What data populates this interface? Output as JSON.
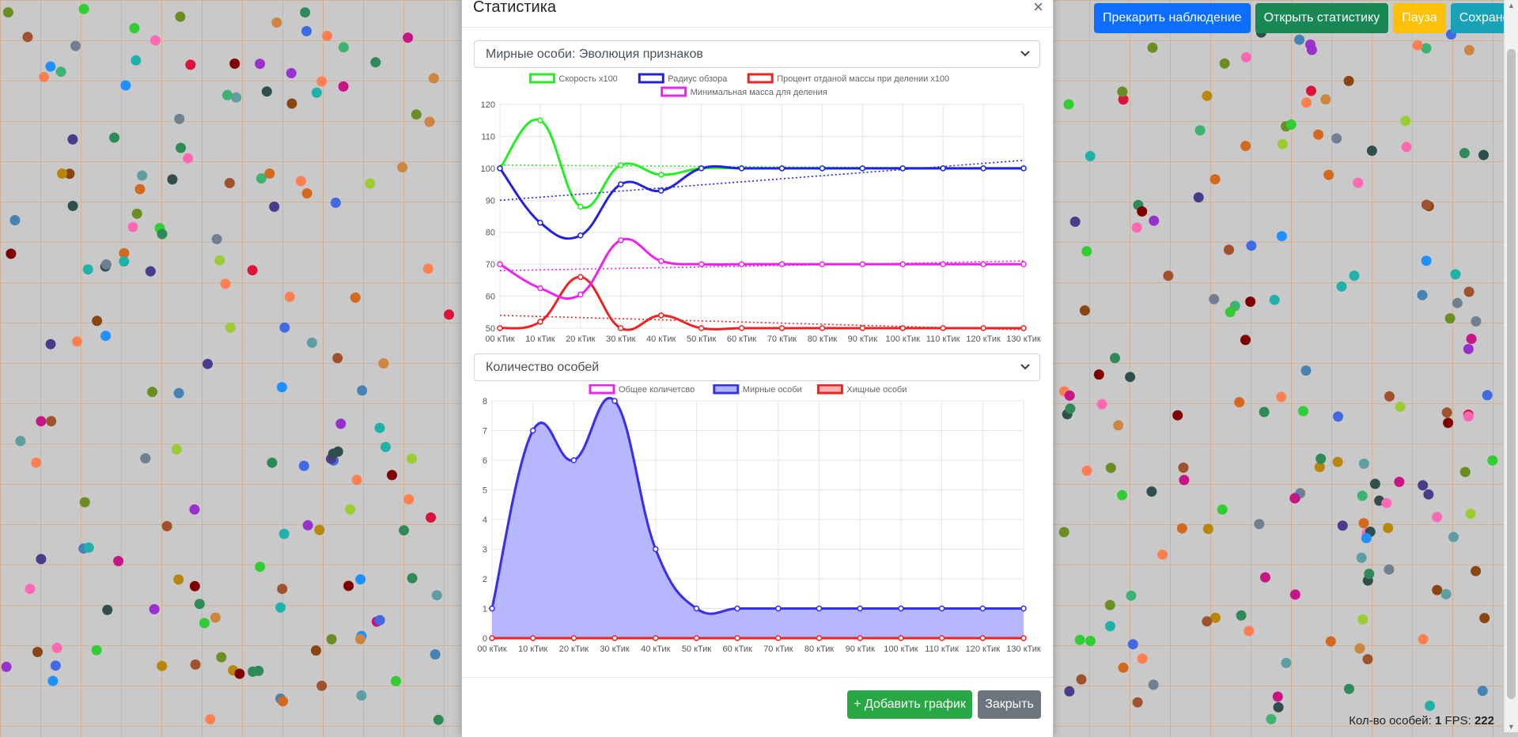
{
  "toolbar": {
    "stop_label": "Прекарить наблюдение",
    "open_stats_label": "Открыть статистику",
    "pause_label": "Пауза",
    "save_label": "Сохранения"
  },
  "status": {
    "count_label": "Кол-во особей:",
    "count_value": "1",
    "fps_label": "FPS:",
    "fps_value": "222"
  },
  "modal": {
    "title": "Статистика",
    "close_symbol": "×",
    "add_chart_label": "+ Добавить график",
    "close_label": "Закрыть"
  },
  "colors": {
    "primary": "#0d6efd",
    "success": "#198754",
    "warning": "#ffc107",
    "info": "#17a2b8",
    "secondary": "#6c757d",
    "speed": "#22ee22",
    "radius": "#2222dd",
    "percent": "#ee2222",
    "mass": "#ee22ee"
  },
  "chart_data": [
    {
      "type": "line",
      "select_label": "Мирные особи: Эволюция признаков",
      "categories": [
        "00 кТик",
        "10 кТик",
        "20 кТик",
        "30 кТик",
        "40 кТик",
        "50 кТик",
        "60 кТик",
        "70 кТик",
        "80 кТик",
        "90 кТик",
        "100 кТик",
        "110 кТик",
        "120 кТик",
        "130 кТик"
      ],
      "ylim": [
        50,
        120
      ],
      "yticks": [
        50,
        60,
        70,
        80,
        90,
        100,
        110,
        120
      ],
      "series": [
        {
          "name": "Скорость х100",
          "color": "#22ee22",
          "values": [
            100,
            115,
            88,
            101,
            98,
            100,
            100,
            100,
            100,
            100,
            100,
            100,
            100,
            100
          ],
          "trend": [
            101,
            100
          ]
        },
        {
          "name": "Радиус обзора",
          "color": "#2222dd",
          "values": [
            100,
            83,
            79,
            95,
            93,
            100,
            100,
            100,
            100,
            100,
            100,
            100,
            100,
            100
          ],
          "trend": [
            90,
            102.5
          ]
        },
        {
          "name": "Процент отданой массы при делении х100",
          "color": "#ee2222",
          "values": [
            50,
            52,
            66,
            50,
            54,
            50,
            50,
            50,
            50,
            50,
            50,
            50,
            50,
            50
          ],
          "trend": [
            54,
            49.5
          ]
        },
        {
          "name": "Минимальная масса для деления",
          "color": "#ee22ee",
          "values": [
            70,
            62.5,
            60.5,
            77.5,
            71,
            70,
            70,
            70,
            70,
            70,
            70,
            70,
            70,
            70
          ],
          "trend": [
            68,
            71
          ]
        }
      ]
    },
    {
      "type": "area",
      "select_label": "Количество особей",
      "categories": [
        "00 кТик",
        "10 кТик",
        "20 кТик",
        "30 кТик",
        "40 кТик",
        "50 кТик",
        "60 кТик",
        "70 кТик",
        "80 кТик",
        "90 кТик",
        "100 кТик",
        "110 кТик",
        "120 кТик",
        "130 кТик"
      ],
      "ylim": [
        0,
        8
      ],
      "yticks": [
        0,
        1,
        2,
        3,
        4,
        5,
        6,
        7,
        8
      ],
      "series": [
        {
          "name": "Общее количетсво",
          "color": "#ee22ee",
          "fill": "none",
          "values": [
            1,
            7,
            6,
            8,
            3,
            1,
            1,
            1,
            1,
            1,
            1,
            1,
            1,
            1
          ]
        },
        {
          "name": "Мирные особи",
          "color": "#3333ee",
          "fill": "#b3b3ff",
          "values": [
            1,
            7,
            6,
            8,
            3,
            1,
            1,
            1,
            1,
            1,
            1,
            1,
            1,
            1
          ]
        },
        {
          "name": "Хищные особи",
          "color": "#ee2222",
          "fill": "#ffb3b3",
          "values": [
            0,
            0,
            0,
            0,
            0,
            0,
            0,
            0,
            0,
            0,
            0,
            0,
            0,
            0
          ]
        }
      ]
    }
  ]
}
